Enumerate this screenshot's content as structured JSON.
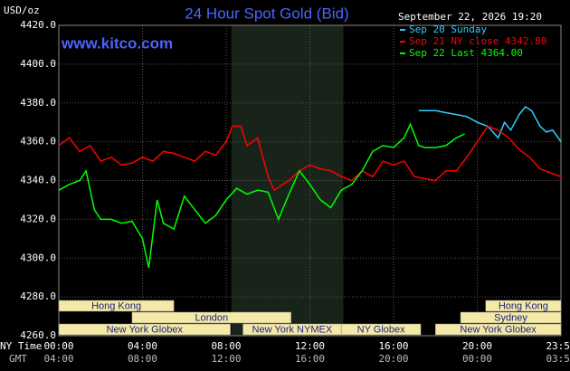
{
  "chart_data": {
    "type": "line",
    "title": "24 Hour Spot Gold (Bid)",
    "site": "www.kitco.com",
    "y_label": "USD/oz",
    "timestamp": "September 22, 2026 19:20",
    "x_label": "NY Time",
    "x2_label": "GMT",
    "ylim": [
      4260,
      4420
    ],
    "yticks": [
      {
        "value": 4260,
        "label": "4260.0"
      },
      {
        "value": 4280,
        "label": "4280.0"
      },
      {
        "value": 4300,
        "label": "4300.0"
      },
      {
        "value": 4320,
        "label": "4320.0"
      },
      {
        "value": 4340,
        "label": "4340.0"
      },
      {
        "value": 4360,
        "label": "4360.0"
      },
      {
        "value": 4380,
        "label": "4380.0"
      },
      {
        "value": 4400,
        "label": "4400.0"
      },
      {
        "value": 4420,
        "label": "4420.0"
      }
    ],
    "xlim": [
      0,
      24
    ],
    "xticks": [
      {
        "value": 0,
        "label": "00:00"
      },
      {
        "value": 4,
        "label": "04:00"
      },
      {
        "value": 8,
        "label": "08:00"
      },
      {
        "value": 12,
        "label": "12:00"
      },
      {
        "value": 16,
        "label": "16:00"
      },
      {
        "value": 20,
        "label": "20:00"
      },
      {
        "value": 24,
        "label": "23:59"
      }
    ],
    "x2ticks": [
      "04:00",
      "08:00",
      "12:00",
      "16:00",
      "20:00",
      "00:00",
      "03:59"
    ],
    "grid": true,
    "highlight": {
      "start": 8.25,
      "end": 13.6,
      "color": "#18241a"
    },
    "sessions": [
      {
        "label": "Hong Kong",
        "start": 0,
        "end": 5.5,
        "row": 0
      },
      {
        "label": "Hong Kong",
        "start": 20.4,
        "end": 24,
        "row": 0
      },
      {
        "label": "London",
        "start": 3.5,
        "end": 11.1,
        "row": 1
      },
      {
        "label": "Sydney",
        "start": 19.2,
        "end": 24,
        "row": 1
      },
      {
        "label": "New York Globex",
        "start": 0,
        "end": 8.2,
        "row": 2
      },
      {
        "label": "New York NYMEX",
        "start": 8.8,
        "end": 13.5,
        "row": 2
      },
      {
        "label": "NY Globex",
        "start": 13.5,
        "end": 17.3,
        "row": 2
      },
      {
        "label": "New York Globex",
        "start": 18,
        "end": 24,
        "row": 2
      }
    ],
    "session_color": "#f5e9a8",
    "series": [
      {
        "name": "Sep 20 Sunday",
        "color": "#33ccff",
        "x": [
          17.2,
          17.5,
          18,
          18.5,
          19,
          19.5,
          20,
          20.5,
          21,
          21.3,
          21.6,
          22,
          22.3,
          22.6,
          23,
          23.3,
          23.6,
          24
        ],
        "values": [
          4376,
          4376,
          4376,
          4375,
          4374,
          4373,
          4370,
          4368,
          4362,
          4370,
          4366,
          4374,
          4378,
          4376,
          4368,
          4365,
          4366,
          4360
        ]
      },
      {
        "name": "Sep 21 NY close 4342.80",
        "color": "#ff0000",
        "x": [
          0,
          0.5,
          1,
          1.5,
          2,
          2.5,
          3,
          3.5,
          4,
          4.5,
          5,
          5.5,
          6,
          6.5,
          7,
          7.5,
          8,
          8.3,
          8.7,
          9,
          9.5,
          10,
          10.3,
          10.7,
          11,
          11.5,
          12,
          12.5,
          13,
          13.5,
          14,
          14.5,
          15,
          15.5,
          16,
          16.5,
          17,
          17.5,
          18,
          18.5,
          19,
          19.5,
          20,
          20.5,
          21,
          21.5,
          22,
          22.5,
          23,
          23.5,
          24
        ],
        "values": [
          4358,
          4362,
          4355,
          4358,
          4350,
          4352,
          4348,
          4349,
          4352,
          4350,
          4355,
          4354,
          4352,
          4350,
          4355,
          4353,
          4360,
          4368,
          4368,
          4358,
          4362,
          4342,
          4335,
          4338,
          4340,
          4345,
          4348,
          4346,
          4345,
          4342,
          4340,
          4345,
          4342,
          4350,
          4348,
          4350,
          4342,
          4341,
          4340,
          4345,
          4345,
          4352,
          4360,
          4368,
          4366,
          4362,
          4356,
          4352,
          4346,
          4344,
          4342
        ]
      },
      {
        "name": "Sep 22 Last 4364.00",
        "color": "#00ff00",
        "x": [
          0,
          0.5,
          1,
          1.3,
          1.7,
          2,
          2.5,
          3,
          3.5,
          4,
          4.3,
          4.7,
          5,
          5.5,
          6,
          6.5,
          7,
          7.5,
          8,
          8.5,
          9,
          9.5,
          10,
          10.5,
          11,
          11.5,
          12,
          12.5,
          13,
          13.5,
          14,
          14.5,
          15,
          15.5,
          16,
          16.5,
          16.8,
          17.2,
          17.5,
          18,
          18.5,
          19,
          19.4
        ],
        "values": [
          4335,
          4338,
          4340,
          4345,
          4325,
          4320,
          4320,
          4318,
          4319,
          4310,
          4295,
          4330,
          4318,
          4315,
          4332,
          4325,
          4318,
          4322,
          4330,
          4336,
          4333,
          4335,
          4334,
          4320,
          4333,
          4345,
          4338,
          4330,
          4326,
          4335,
          4338,
          4345,
          4355,
          4358,
          4357,
          4362,
          4369,
          4358,
          4357,
          4357,
          4358,
          4362,
          4364
        ]
      }
    ]
  }
}
